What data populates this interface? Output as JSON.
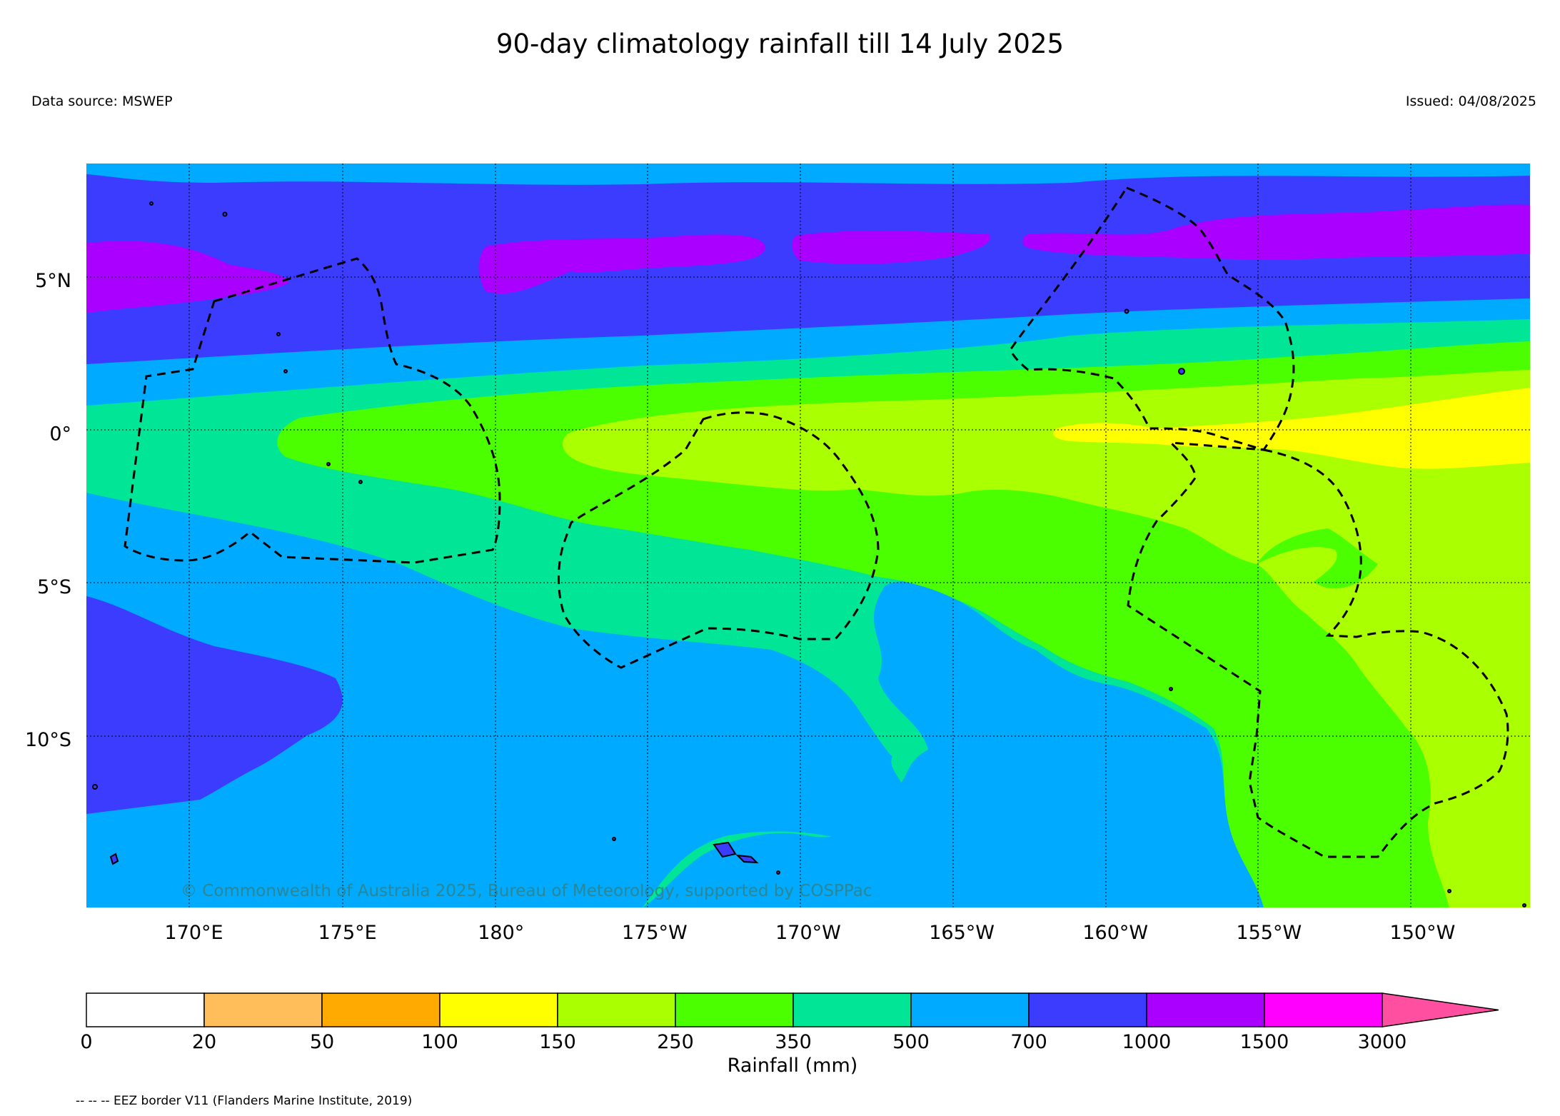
{
  "header": {
    "title": "90-day climatology rainfall till 14 July 2025",
    "data_source": "Data source: MSWEP",
    "issued": "Issued: 04/08/2025"
  },
  "map": {
    "lon_range": [
      166.5,
      213.5
    ],
    "lat_range": [
      -15.5,
      8.8
    ],
    "x_ticks": [
      {
        "lon": 170,
        "label": "170°E"
      },
      {
        "lon": 175,
        "label": "175°E"
      },
      {
        "lon": 180,
        "label": "180°"
      },
      {
        "lon": 185,
        "label": "175°W"
      },
      {
        "lon": 190,
        "label": "170°W"
      },
      {
        "lon": 195,
        "label": "165°W"
      },
      {
        "lon": 200,
        "label": "160°W"
      },
      {
        "lon": 205,
        "label": "155°W"
      },
      {
        "lon": 210,
        "label": "150°W"
      }
    ],
    "y_ticks": [
      {
        "lat": 5,
        "label": "5°N"
      },
      {
        "lat": 0,
        "label": "0°"
      },
      {
        "lat": -5,
        "label": "5°S"
      },
      {
        "lat": -10,
        "label": "10°S"
      }
    ],
    "grid": true,
    "copyright": "© Commonwealth of Australia 2025, Bureau of Meteorology, supported by COSPPac"
  },
  "colorbar": {
    "title": "Rainfall (mm)",
    "bins": [
      {
        "label": "0",
        "color": "#ffffff"
      },
      {
        "label": "20",
        "color": "#ffbe5a"
      },
      {
        "label": "50",
        "color": "#ffaa00"
      },
      {
        "label": "100",
        "color": "#ffff00"
      },
      {
        "label": "150",
        "color": "#aaff00"
      },
      {
        "label": "250",
        "color": "#4cff00"
      },
      {
        "label": "350",
        "color": "#00e696"
      },
      {
        "label": "500",
        "color": "#00aaff"
      },
      {
        "label": "700",
        "color": "#3c3cff"
      },
      {
        "label": "1000",
        "color": "#aa00ff"
      },
      {
        "label": "1500",
        "color": "#ff00ff"
      },
      {
        "label": "3000",
        "color": "#ff4fa0"
      }
    ],
    "extend": "max"
  },
  "legend_note": "-- -- -- EEZ border V11 (Flanders Marine Institute, 2019)"
}
